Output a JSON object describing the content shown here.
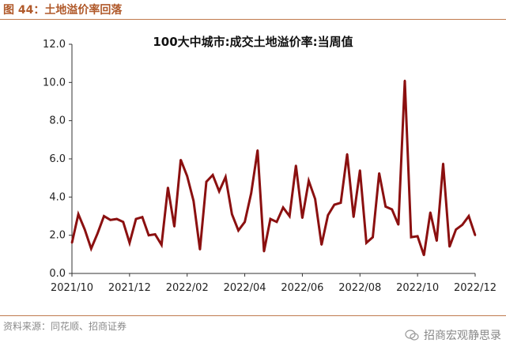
{
  "figure": {
    "title": "图 44：土地溢价率回落",
    "source": "资料来源：同花顺、招商证券",
    "watermark": "招商宏观静思录",
    "watermark_icon": "wechat-icon"
  },
  "colors": {
    "header": "#b0592a",
    "line": "#8b1010",
    "rule": "#c07a4e"
  },
  "chart_data": {
    "type": "line",
    "title": "100大中城市:成交土地溢价率:当周值",
    "xlabel": "",
    "ylabel": "",
    "ylim": [
      0,
      12
    ],
    "yticks": [
      "0.0",
      "2.0",
      "4.0",
      "6.0",
      "8.0",
      "10.0",
      "12.0"
    ],
    "xticks": [
      "2021/10",
      "2021/12",
      "2022/02",
      "2022/04",
      "2022/06",
      "2022/08",
      "2022/10",
      "2022/12"
    ],
    "grid": false,
    "series": [
      {
        "values": [
          1.6,
          3.1,
          2.3,
          1.3,
          2.1,
          3.0,
          2.8,
          2.85,
          2.7,
          1.6,
          2.85,
          2.95,
          2.0,
          2.05,
          1.5,
          4.5,
          2.45,
          5.95,
          5.1,
          3.8,
          1.25,
          4.8,
          5.15,
          4.3,
          5.05,
          3.1,
          2.25,
          2.7,
          4.2,
          6.45,
          1.15,
          2.85,
          2.7,
          3.45,
          3.0,
          5.65,
          2.9,
          4.85,
          3.9,
          1.5,
          3.05,
          3.6,
          3.7,
          6.25,
          2.95,
          5.4,
          1.6,
          1.9,
          5.25,
          3.5,
          3.35,
          2.55,
          10.1,
          1.9,
          1.95,
          0.95,
          3.2,
          1.7,
          5.75,
          1.4,
          2.3,
          2.55,
          3.0,
          2.0
        ]
      }
    ]
  }
}
